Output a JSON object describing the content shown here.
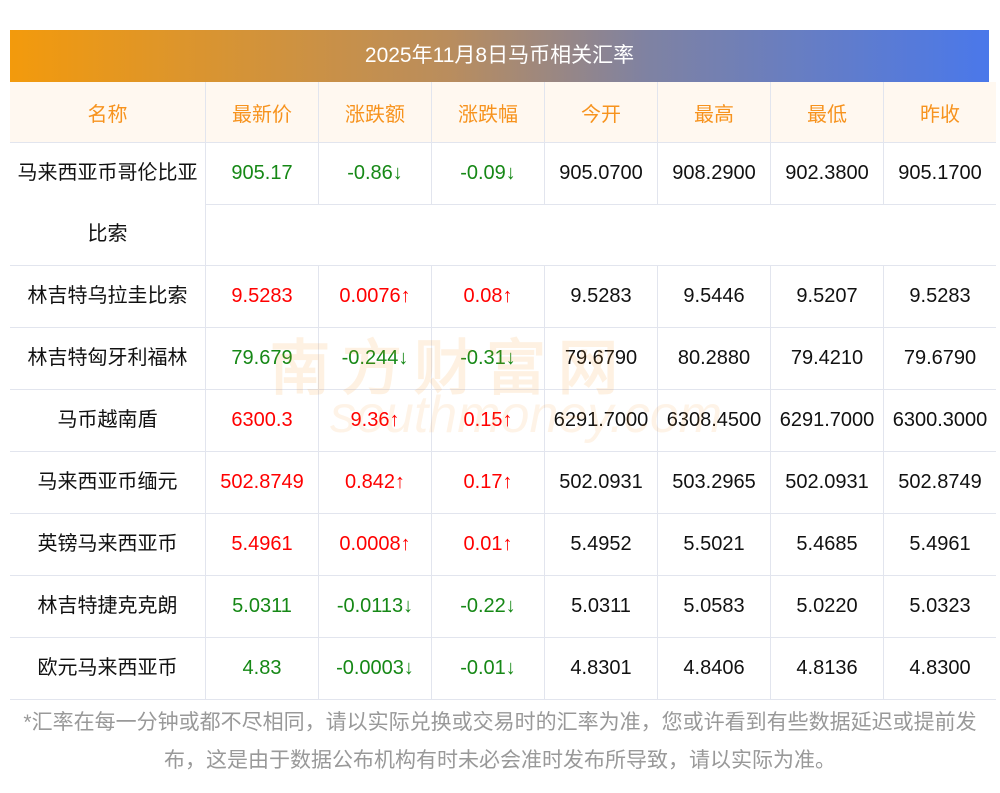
{
  "title": "2025年11月8日马币相关汇率",
  "headers": [
    "名称",
    "最新价",
    "涨跌额",
    "涨跌幅",
    "今开",
    "最高",
    "最低",
    "昨收"
  ],
  "rows": [
    {
      "name": "马来西亚币哥伦比亚比索",
      "price": "905.17",
      "change": "-0.86↓",
      "pct": "-0.09↓",
      "open": "905.0700",
      "high": "908.2900",
      "low": "902.3800",
      "prev": "905.1700",
      "dir": "down"
    },
    {
      "name": "林吉特乌拉圭比索",
      "price": "9.5283",
      "change": "0.0076↑",
      "pct": "0.08↑",
      "open": "9.5283",
      "high": "9.5446",
      "low": "9.5207",
      "prev": "9.5283",
      "dir": "up"
    },
    {
      "name": "林吉特匈牙利福林",
      "price": "79.679",
      "change": "-0.244↓",
      "pct": "-0.31↓",
      "open": "79.6790",
      "high": "80.2880",
      "low": "79.4210",
      "prev": "79.6790",
      "dir": "down"
    },
    {
      "name": "马币越南盾",
      "price": "6300.3",
      "change": "9.36↑",
      "pct": "0.15↑",
      "open": "6291.7000",
      "high": "6308.4500",
      "low": "6291.7000",
      "prev": "6300.3000",
      "dir": "up"
    },
    {
      "name": "马来西亚币缅元",
      "price": "502.8749",
      "change": "0.842↑",
      "pct": "0.17↑",
      "open": "502.0931",
      "high": "503.2965",
      "low": "502.0931",
      "prev": "502.8749",
      "dir": "up"
    },
    {
      "name": "英镑马来西亚币",
      "price": "5.4961",
      "change": "0.0008↑",
      "pct": "0.01↑",
      "open": "5.4952",
      "high": "5.5021",
      "low": "5.4685",
      "prev": "5.4961",
      "dir": "up"
    },
    {
      "name": "林吉特捷克克朗",
      "price": "5.0311",
      "change": "-0.0113↓",
      "pct": "-0.22↓",
      "open": "5.0311",
      "high": "5.0583",
      "low": "5.0220",
      "prev": "5.0323",
      "dir": "down"
    },
    {
      "name": "欧元马来西亚币",
      "price": "4.83",
      "change": "-0.0003↓",
      "pct": "-0.01↓",
      "open": "4.8301",
      "high": "4.8406",
      "low": "4.8136",
      "prev": "4.8300",
      "dir": "down"
    }
  ],
  "watermark": {
    "cn": "南方财富网",
    "en": "southmoney.com"
  },
  "note": "*汇率在每一分钟或都不尽相同，请以实际兑换或交易时的汇率为准，您或许看到有些数据延迟或提前发布，这是由于数据公布机构有时未必会准时发布所导致，请以实际为准。"
}
